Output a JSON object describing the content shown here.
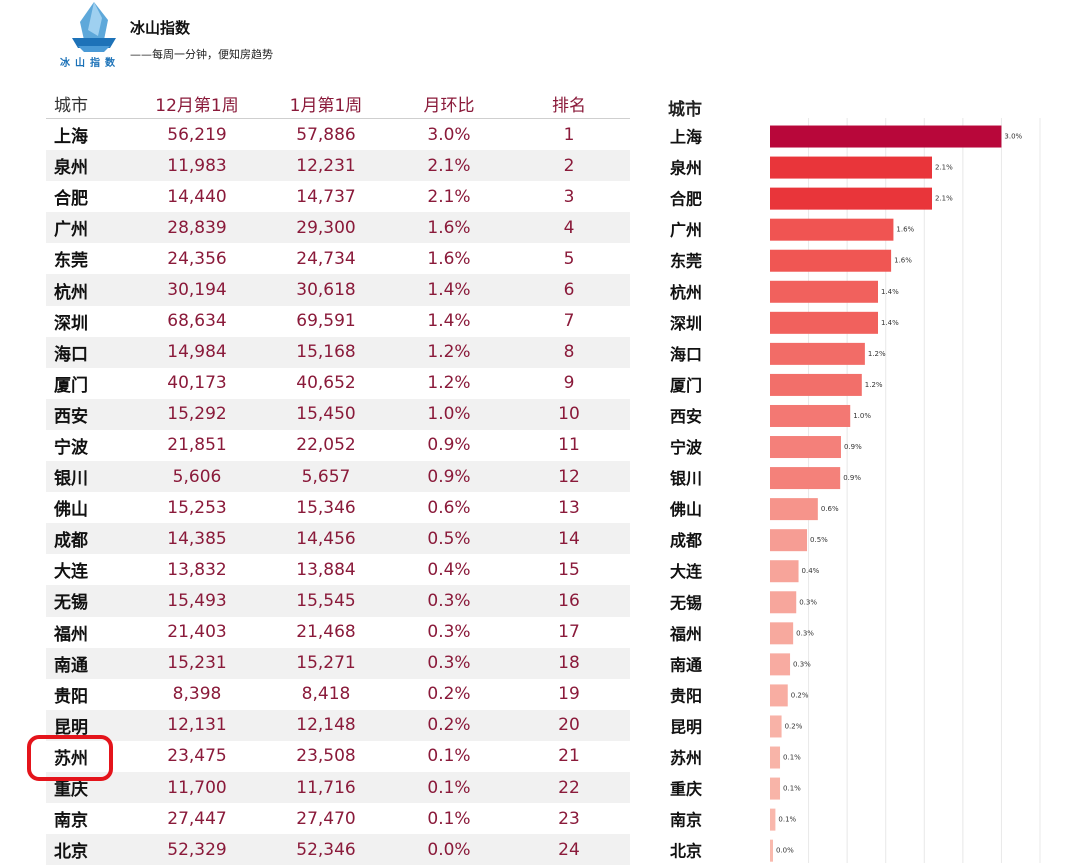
{
  "header": {
    "brand_name": "冰山指数",
    "logo_text": "冰山指数",
    "tagline": "——每周一分钟，便知房趋势"
  },
  "table": {
    "headers": [
      "城市",
      "12月第1周",
      "1月第1周",
      "月环比",
      "排名"
    ],
    "rows": [
      {
        "city": "上海",
        "dec": "56,219",
        "jan": "57,886",
        "mom": "3.0%",
        "rank": "1"
      },
      {
        "city": "泉州",
        "dec": "11,983",
        "jan": "12,231",
        "mom": "2.1%",
        "rank": "2"
      },
      {
        "city": "合肥",
        "dec": "14,440",
        "jan": "14,737",
        "mom": "2.1%",
        "rank": "3"
      },
      {
        "city": "广州",
        "dec": "28,839",
        "jan": "29,300",
        "mom": "1.6%",
        "rank": "4"
      },
      {
        "city": "东莞",
        "dec": "24,356",
        "jan": "24,734",
        "mom": "1.6%",
        "rank": "5"
      },
      {
        "city": "杭州",
        "dec": "30,194",
        "jan": "30,618",
        "mom": "1.4%",
        "rank": "6"
      },
      {
        "city": "深圳",
        "dec": "68,634",
        "jan": "69,591",
        "mom": "1.4%",
        "rank": "7"
      },
      {
        "city": "海口",
        "dec": "14,984",
        "jan": "15,168",
        "mom": "1.2%",
        "rank": "8"
      },
      {
        "city": "厦门",
        "dec": "40,173",
        "jan": "40,652",
        "mom": "1.2%",
        "rank": "9"
      },
      {
        "city": "西安",
        "dec": "15,292",
        "jan": "15,450",
        "mom": "1.0%",
        "rank": "10"
      },
      {
        "city": "宁波",
        "dec": "21,851",
        "jan": "22,052",
        "mom": "0.9%",
        "rank": "11"
      },
      {
        "city": "银川",
        "dec": "5,606",
        "jan": "5,657",
        "mom": "0.9%",
        "rank": "12"
      },
      {
        "city": "佛山",
        "dec": "15,253",
        "jan": "15,346",
        "mom": "0.6%",
        "rank": "13"
      },
      {
        "city": "成都",
        "dec": "14,385",
        "jan": "14,456",
        "mom": "0.5%",
        "rank": "14"
      },
      {
        "city": "大连",
        "dec": "13,832",
        "jan": "13,884",
        "mom": "0.4%",
        "rank": "15"
      },
      {
        "city": "无锡",
        "dec": "15,493",
        "jan": "15,545",
        "mom": "0.3%",
        "rank": "16"
      },
      {
        "city": "福州",
        "dec": "21,403",
        "jan": "21,468",
        "mom": "0.3%",
        "rank": "17"
      },
      {
        "city": "南通",
        "dec": "15,231",
        "jan": "15,271",
        "mom": "0.3%",
        "rank": "18"
      },
      {
        "city": "贵阳",
        "dec": "8,398",
        "jan": "8,418",
        "mom": "0.2%",
        "rank": "19"
      },
      {
        "city": "昆明",
        "dec": "12,131",
        "jan": "12,148",
        "mom": "0.2%",
        "rank": "20"
      },
      {
        "city": "苏州",
        "dec": "23,475",
        "jan": "23,508",
        "mom": "0.1%",
        "rank": "21"
      },
      {
        "city": "重庆",
        "dec": "11,700",
        "jan": "11,716",
        "mom": "0.1%",
        "rank": "22"
      },
      {
        "city": "南京",
        "dec": "27,447",
        "jan": "27,470",
        "mom": "0.1%",
        "rank": "23"
      },
      {
        "city": "北京",
        "dec": "52,329",
        "jan": "52,346",
        "mom": "0.0%",
        "rank": "24"
      }
    ]
  },
  "chart_data": {
    "type": "bar",
    "orientation": "horizontal",
    "title": "城市",
    "categories": [
      "上海",
      "泉州",
      "合肥",
      "广州",
      "东莞",
      "杭州",
      "深圳",
      "海口",
      "厦门",
      "西安",
      "宁波",
      "银川",
      "佛山",
      "成都",
      "大连",
      "无锡",
      "福州",
      "南通",
      "贵阳",
      "昆明",
      "苏州",
      "重庆",
      "南京",
      "北京"
    ],
    "values": [
      3.0,
      2.1,
      2.1,
      1.6,
      1.6,
      1.4,
      1.4,
      1.2,
      1.2,
      1.0,
      0.9,
      0.9,
      0.6,
      0.5,
      0.4,
      0.3,
      0.3,
      0.3,
      0.2,
      0.2,
      0.1,
      0.1,
      0.1,
      0.0
    ],
    "plot_values": [
      3.0,
      2.1,
      2.1,
      1.6,
      1.57,
      1.4,
      1.4,
      1.23,
      1.19,
      1.04,
      0.92,
      0.91,
      0.62,
      0.48,
      0.37,
      0.34,
      0.3,
      0.26,
      0.23,
      0.15,
      0.13,
      0.13,
      0.07,
      0.03
    ],
    "value_labels": [
      "3.0%",
      "2.1%",
      "2.1%",
      "1.6%",
      "1.6%",
      "1.4%",
      "1.4%",
      "1.2%",
      "1.2%",
      "1.0%",
      "0.9%",
      "0.9%",
      "0.6%",
      "0.5%",
      "0.4%",
      "0.3%",
      "0.3%",
      "0.3%",
      "0.2%",
      "0.2%",
      "0.1%",
      "0.1%",
      "0.1%",
      "0.0%"
    ],
    "xlim": [
      0,
      3.5
    ],
    "grid": true,
    "colors": {
      "high": "#b8073a",
      "mid": "#ee3a3a",
      "low": "#f9bcb0"
    }
  },
  "highlight": {
    "city": "苏州",
    "color": "#e4141b"
  }
}
